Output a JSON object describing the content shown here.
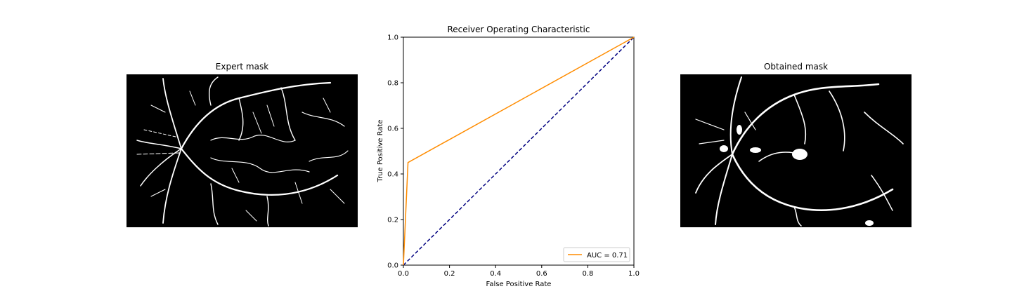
{
  "left_panel": {
    "title": "Expert mask"
  },
  "right_panel": {
    "title": "Obtained mask"
  },
  "chart_data": {
    "type": "line",
    "title": "Receiver Operating Characteristic",
    "xlabel": "False Positive Rate",
    "ylabel": "True Positive Rate",
    "xlim": [
      0,
      1
    ],
    "ylim": [
      0,
      1
    ],
    "xticks": [
      "0.0",
      "0.2",
      "0.4",
      "0.6",
      "0.8",
      "1.0"
    ],
    "yticks": [
      "0.0",
      "0.2",
      "0.4",
      "0.6",
      "0.8",
      "1.0"
    ],
    "grid": false,
    "legend_position": "lower-right",
    "series": [
      {
        "name": "AUC = 0.71",
        "color": "#ff8c00",
        "style": "solid",
        "x": [
          0,
          0.02,
          1
        ],
        "y": [
          0,
          0.45,
          1
        ]
      },
      {
        "color": "#000080",
        "style": "dashed",
        "x": [
          0,
          1
        ],
        "y": [
          0,
          1
        ]
      }
    ]
  }
}
